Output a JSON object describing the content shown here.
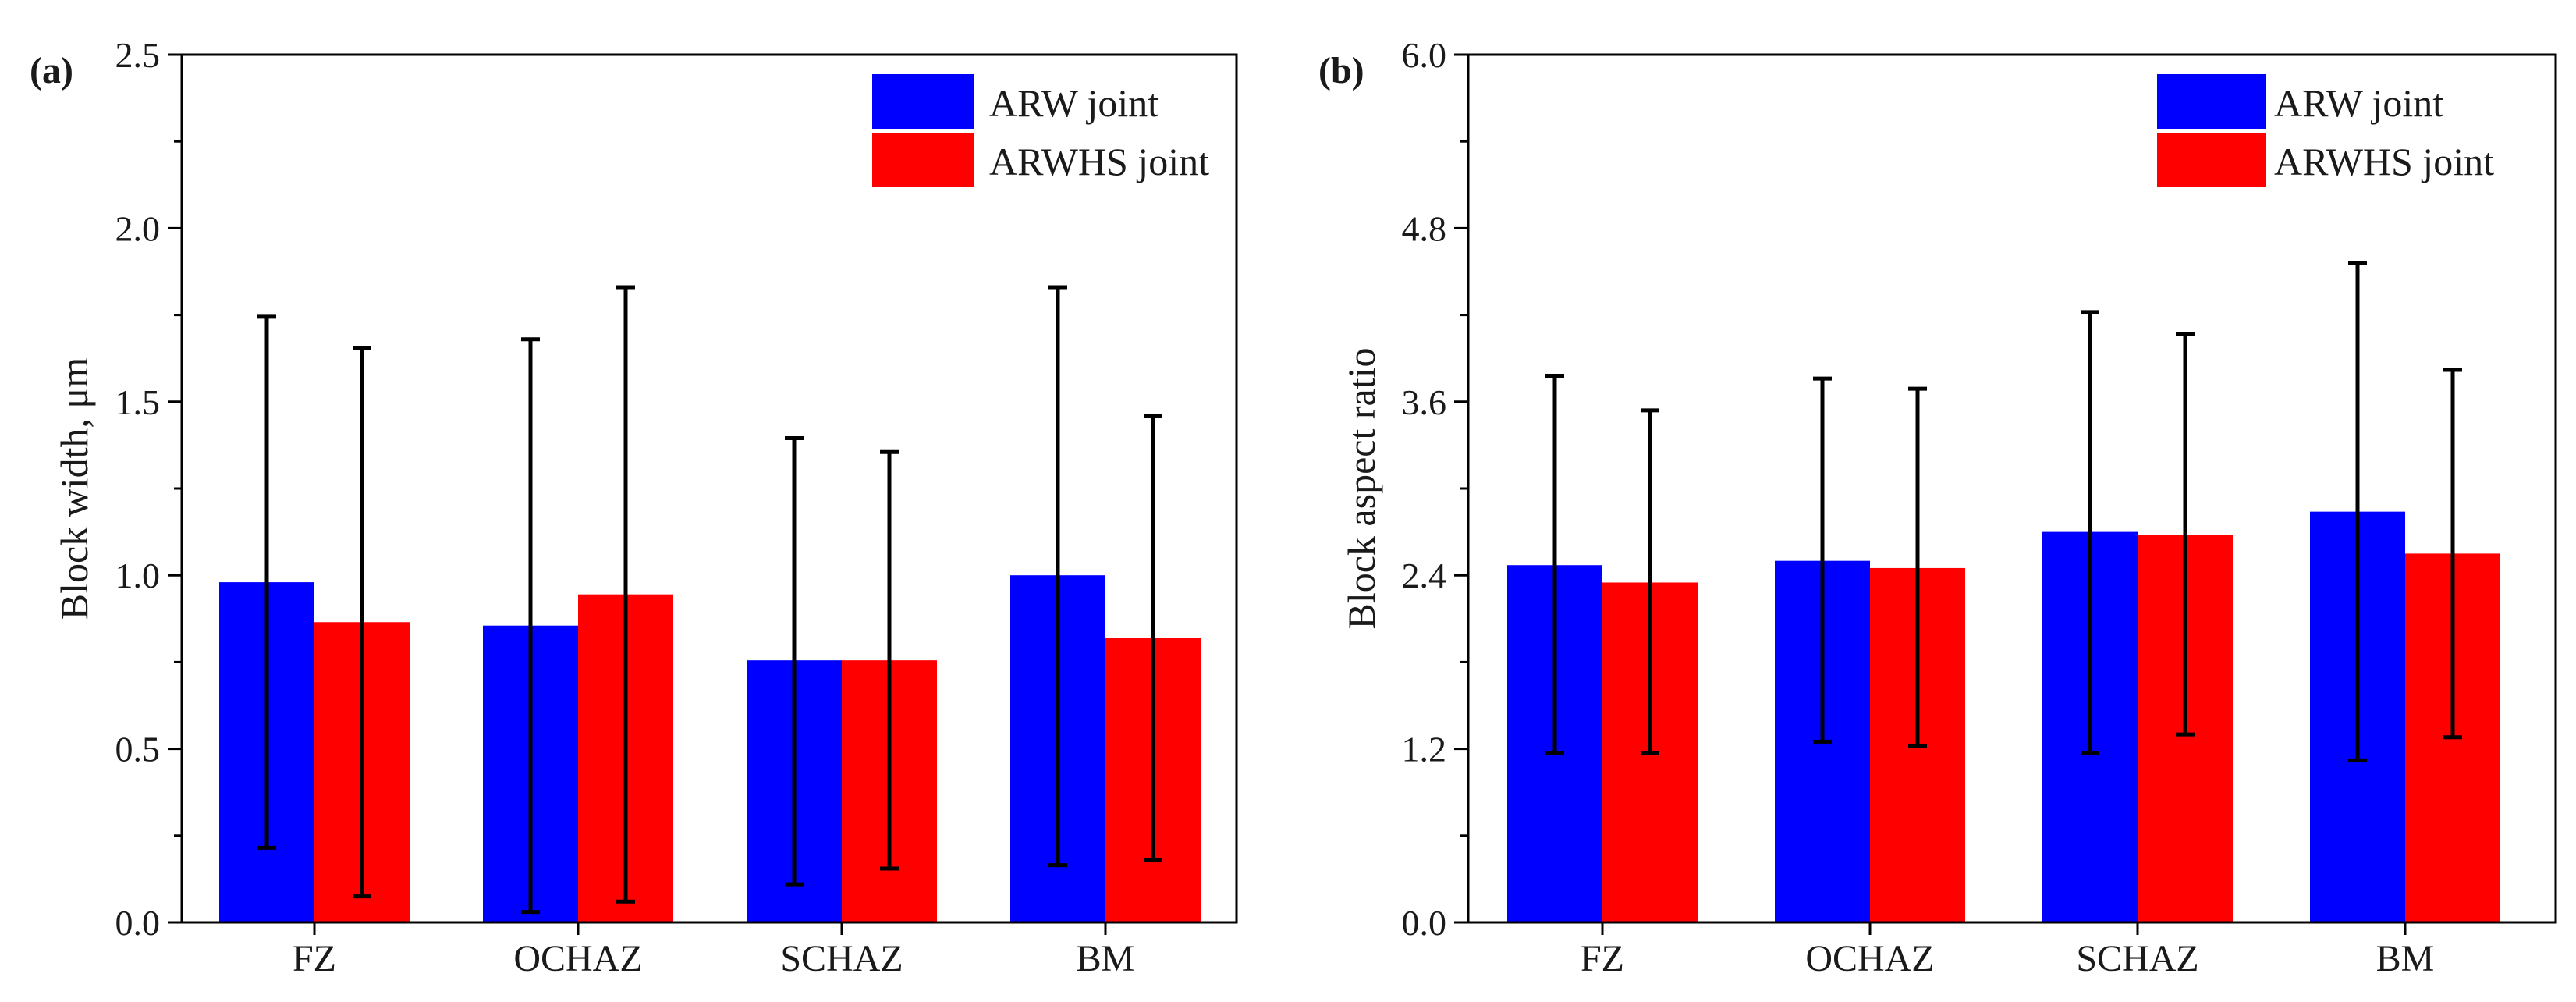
{
  "colors": {
    "arw": "#0000ff",
    "arwhs": "#ff0000",
    "axis": "#000000"
  },
  "chart_data": [
    {
      "type": "bar",
      "panel_label": "(a)",
      "ylabel": "Block width, μm",
      "xlabel": "",
      "ylim": [
        0,
        2.5
      ],
      "yticks": [
        "0.0",
        "0.5",
        "1.0",
        "1.5",
        "2.0",
        "2.5"
      ],
      "categories": [
        "FZ",
        "OCHAZ",
        "SCHAZ",
        "BM"
      ],
      "legend_position": "top-right",
      "series": [
        {
          "name": "ARW joint",
          "values": [
            0.98,
            0.855,
            0.755,
            1.0
          ],
          "err_low": [
            0.215,
            0.03,
            0.11,
            0.165
          ],
          "err_high": [
            1.745,
            1.68,
            1.395,
            1.83
          ]
        },
        {
          "name": "ARWHS joint",
          "values": [
            0.865,
            0.945,
            0.755,
            0.82
          ],
          "err_low": [
            0.075,
            0.06,
            0.155,
            0.18
          ],
          "err_high": [
            1.655,
            1.83,
            1.355,
            1.46
          ]
        }
      ]
    },
    {
      "type": "bar",
      "panel_label": "(b)",
      "ylabel": "Block aspect ratio",
      "xlabel": "",
      "ylim": [
        0,
        6.0
      ],
      "yticks": [
        "0.0",
        "1.2",
        "2.4",
        "3.6",
        "4.8",
        "6.0"
      ],
      "categories": [
        "FZ",
        "OCHAZ",
        "SCHAZ",
        "BM"
      ],
      "legend_position": "top-right",
      "series": [
        {
          "name": "ARW joint",
          "values": [
            2.47,
            2.5,
            2.7,
            2.84
          ],
          "err_low": [
            1.17,
            1.25,
            1.17,
            1.12
          ],
          "err_high": [
            3.78,
            3.76,
            4.22,
            4.56
          ]
        },
        {
          "name": "ARWHS joint",
          "values": [
            2.35,
            2.45,
            2.68,
            2.55
          ],
          "err_low": [
            1.17,
            1.22,
            1.3,
            1.28
          ],
          "err_high": [
            3.54,
            3.69,
            4.07,
            3.82
          ]
        }
      ]
    }
  ]
}
